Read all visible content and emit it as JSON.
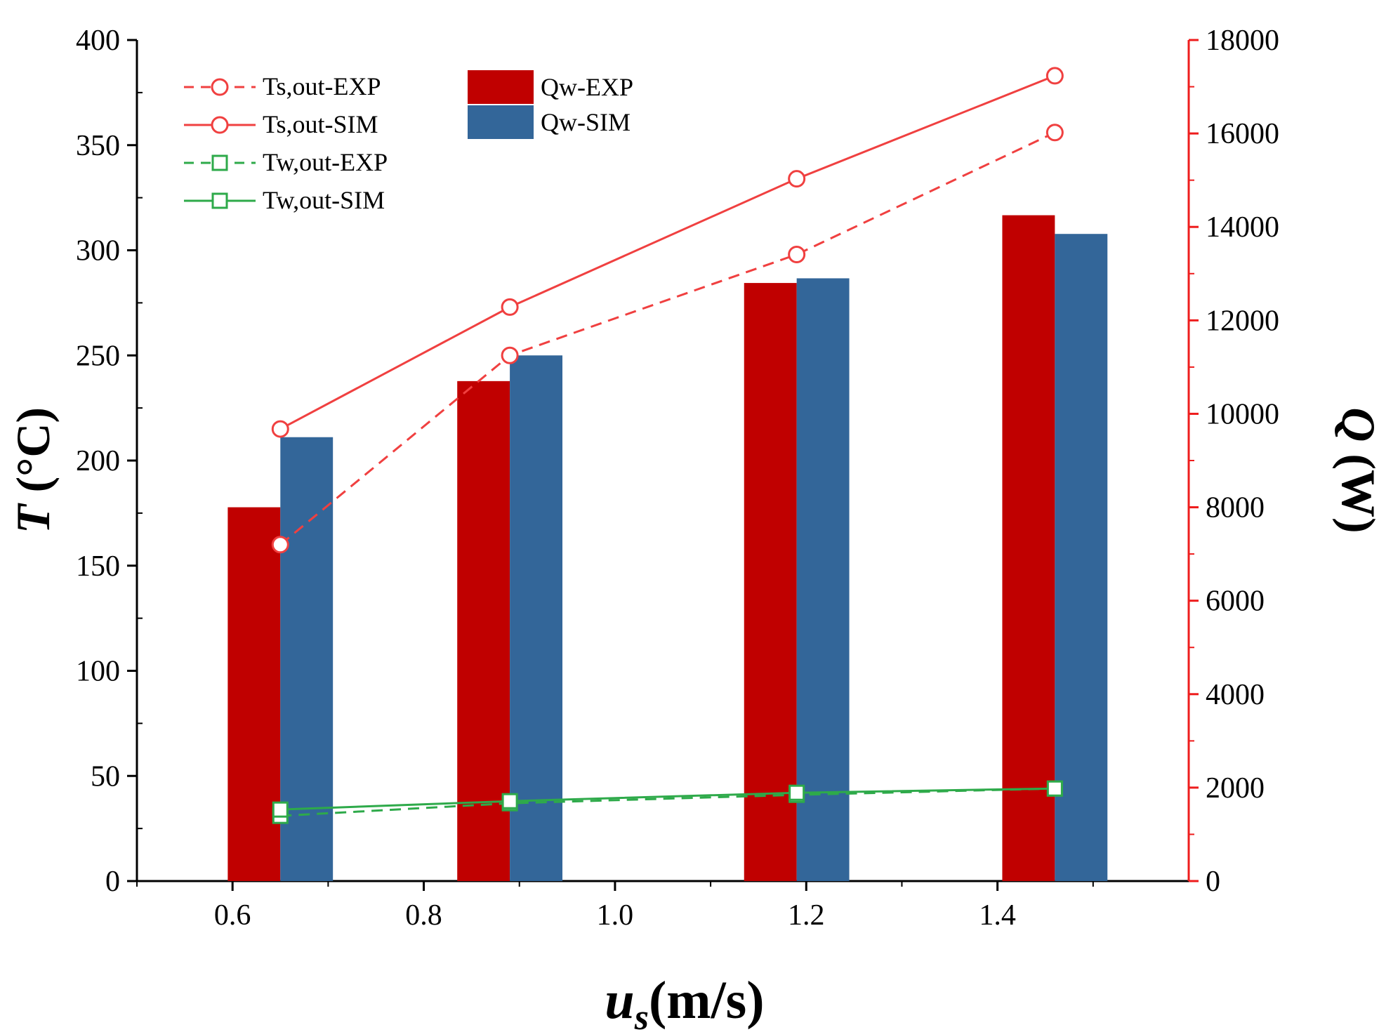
{
  "chart_data": {
    "type": "bar+line",
    "xlabel_main": "u",
    "xlabel_sub": "s",
    "xlabel_unit": "(m/s)",
    "ylabel_left_main": "T",
    "ylabel_left_unit": " (°C)",
    "ylabel_right_main": "Q",
    "ylabel_right_unit": " (W)",
    "xlim": [
      0.5,
      1.6
    ],
    "ylim_left": [
      0,
      400
    ],
    "ylim_right": [
      0,
      18000
    ],
    "x_ticks": [
      "0.6",
      "0.8",
      "1.0",
      "1.2",
      "1.4"
    ],
    "y_left_ticks": [
      "0",
      "50",
      "100",
      "150",
      "200",
      "250",
      "300",
      "350",
      "400"
    ],
    "y_right_ticks": [
      "0",
      "2000",
      "4000",
      "6000",
      "8000",
      "10000",
      "12000",
      "14000",
      "16000",
      "18000"
    ],
    "x": [
      0.65,
      0.89,
      1.19,
      1.46
    ],
    "bar_width": 0.055,
    "bar_series": [
      {
        "name": "Qw-EXP",
        "color": "#c00000",
        "values": [
          8000,
          10700,
          12800,
          14250
        ]
      },
      {
        "name": "Qw-SIM",
        "color": "#336699",
        "values": [
          9500,
          11250,
          12900,
          13850
        ]
      }
    ],
    "line_series": [
      {
        "name": "Ts,out-EXP",
        "color": "#f04040",
        "dash": true,
        "marker": "circle",
        "values": [
          160,
          250,
          298,
          356
        ]
      },
      {
        "name": "Ts,out-SIM",
        "color": "#f04040",
        "dash": false,
        "marker": "circle",
        "values": [
          215,
          273,
          334,
          383
        ]
      },
      {
        "name": "Tw,out-EXP",
        "color": "#2eaa4a",
        "dash": true,
        "marker": "square",
        "values": [
          31,
          37,
          41,
          44
        ]
      },
      {
        "name": "Tw,out-SIM",
        "color": "#2eaa4a",
        "dash": false,
        "marker": "square",
        "values": [
          34,
          38,
          42,
          44
        ]
      }
    ],
    "axis_colors": {
      "left": "#000000",
      "right": "#ee1c1c"
    },
    "legend_position": "top-left"
  }
}
